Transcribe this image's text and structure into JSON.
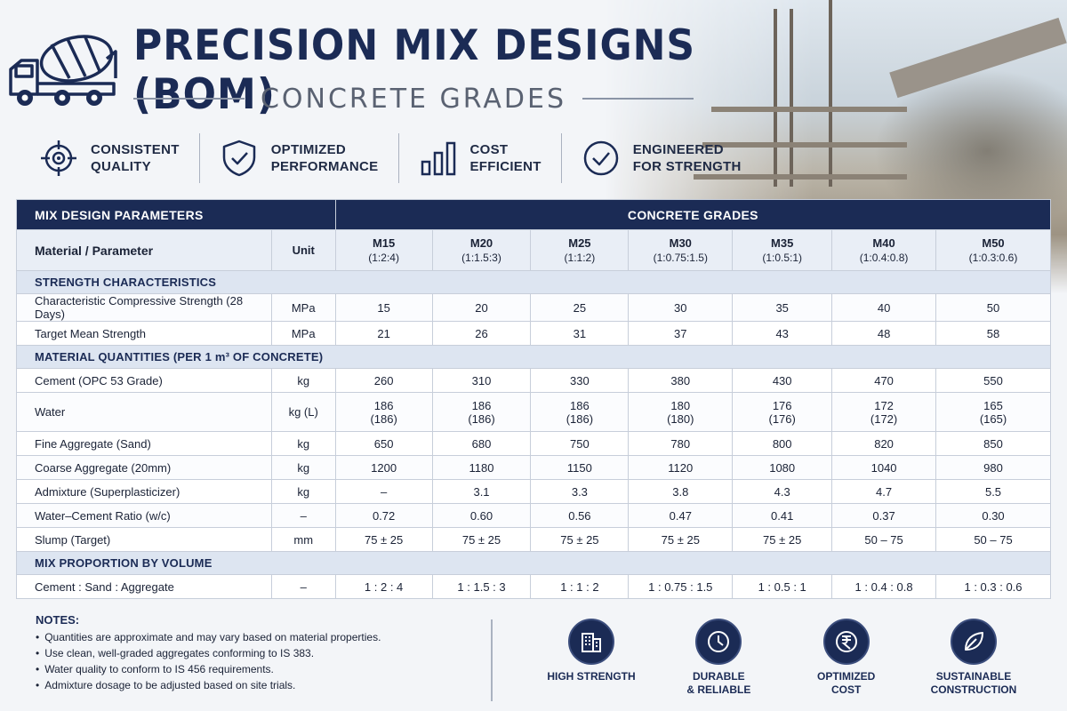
{
  "header": {
    "title": "PRECISION MIX DESIGNS (BOM)",
    "subtitle": "CONCRETE GRADES"
  },
  "features": [
    {
      "icon": "target-icon",
      "label": "CONSISTENT\nQUALITY"
    },
    {
      "icon": "shield-check-icon",
      "label": "OPTIMIZED\nPERFORMANCE"
    },
    {
      "icon": "bar-chart-icon",
      "label": "COST\nEFFICIENT"
    },
    {
      "icon": "check-circle-icon",
      "label": "ENGINEERED\nFOR STRENGTH"
    }
  ],
  "table": {
    "header_left": "MIX DESIGN PARAMETERS",
    "header_right": "CONCRETE GRADES",
    "col_material": "Material / Parameter",
    "col_unit": "Unit",
    "grades": [
      {
        "name": "M15",
        "ratio": "(1:2:4)"
      },
      {
        "name": "M20",
        "ratio": "(1:1.5:3)"
      },
      {
        "name": "M25",
        "ratio": "(1:1:2)"
      },
      {
        "name": "M30",
        "ratio": "(1:0.75:1.5)"
      },
      {
        "name": "M35",
        "ratio": "(1:0.5:1)"
      },
      {
        "name": "M40",
        "ratio": "(1:0.4:0.8)"
      },
      {
        "name": "M50",
        "ratio": "(1:0.3:0.6)"
      }
    ],
    "sections": [
      {
        "title": "STRENGTH CHARACTERISTICS",
        "rows": [
          {
            "param": "Characteristic Compressive Strength (28 Days)",
            "unit": "MPa",
            "values": [
              "15",
              "20",
              "25",
              "30",
              "35",
              "40",
              "50"
            ]
          },
          {
            "param": "Target Mean Strength",
            "unit": "MPa",
            "values": [
              "21",
              "26",
              "31",
              "37",
              "43",
              "48",
              "58"
            ]
          }
        ]
      },
      {
        "title": "MATERIAL QUANTITIES (PER 1 m³ OF CONCRETE)",
        "rows": [
          {
            "param": "Cement (OPC 53 Grade)",
            "unit": "kg",
            "values": [
              "260",
              "310",
              "330",
              "380",
              "430",
              "470",
              "550"
            ]
          },
          {
            "param": "Water",
            "unit": "kg (L)",
            "tall": true,
            "values": [
              "186\n(186)",
              "186\n(186)",
              "186\n(186)",
              "180\n(180)",
              "176\n(176)",
              "172\n(172)",
              "165\n(165)"
            ]
          },
          {
            "param": "Fine Aggregate (Sand)",
            "unit": "kg",
            "values": [
              "650",
              "680",
              "750",
              "780",
              "800",
              "820",
              "850"
            ]
          },
          {
            "param": "Coarse Aggregate (20mm)",
            "unit": "kg",
            "values": [
              "1200",
              "1180",
              "1150",
              "1120",
              "1080",
              "1040",
              "980"
            ]
          },
          {
            "param": "Admixture (Superplasticizer)",
            "unit": "kg",
            "values": [
              "–",
              "3.1",
              "3.3",
              "3.8",
              "4.3",
              "4.7",
              "5.5"
            ]
          },
          {
            "param": "Water–Cement Ratio (w/c)",
            "unit": "–",
            "values": [
              "0.72",
              "0.60",
              "0.56",
              "0.47",
              "0.41",
              "0.37",
              "0.30"
            ]
          },
          {
            "param": "Slump (Target)",
            "unit": "mm",
            "values": [
              "75 ± 25",
              "75 ± 25",
              "75 ± 25",
              "75 ± 25",
              "75 ± 25",
              "50 – 75",
              "50 – 75"
            ]
          }
        ]
      },
      {
        "title": "MIX PROPORTION BY VOLUME",
        "rows": [
          {
            "param": "Cement : Sand : Aggregate",
            "unit": "–",
            "values": [
              "1 : 2 : 4",
              "1 : 1.5 : 3",
              "1 : 1 : 2",
              "1 : 0.75 : 1.5",
              "1 : 0.5 : 1",
              "1 : 0.4 : 0.8",
              "1 : 0.3 : 0.6"
            ]
          }
        ]
      }
    ]
  },
  "notes": {
    "title": "NOTES:",
    "items": [
      "Quantities are approximate and may vary based on material properties.",
      "Use clean, well-graded aggregates conforming to IS 383.",
      "Water quality to conform to IS 456 requirements.",
      "Admixture dosage to be adjusted based on site trials."
    ]
  },
  "badges": [
    {
      "icon": "building-icon",
      "label": "HIGH STRENGTH"
    },
    {
      "icon": "clock-icon",
      "label": "DURABLE\n& RELIABLE"
    },
    {
      "icon": "rupee-icon",
      "label": "OPTIMIZED\nCOST"
    },
    {
      "icon": "leaf-icon",
      "label": "SUSTAINABLE\nCONSTRUCTION"
    }
  ],
  "colors": {
    "navy": "#1b2b55",
    "section_bg": "#dde5f1",
    "grade_header_bg": "#e9eef6"
  }
}
